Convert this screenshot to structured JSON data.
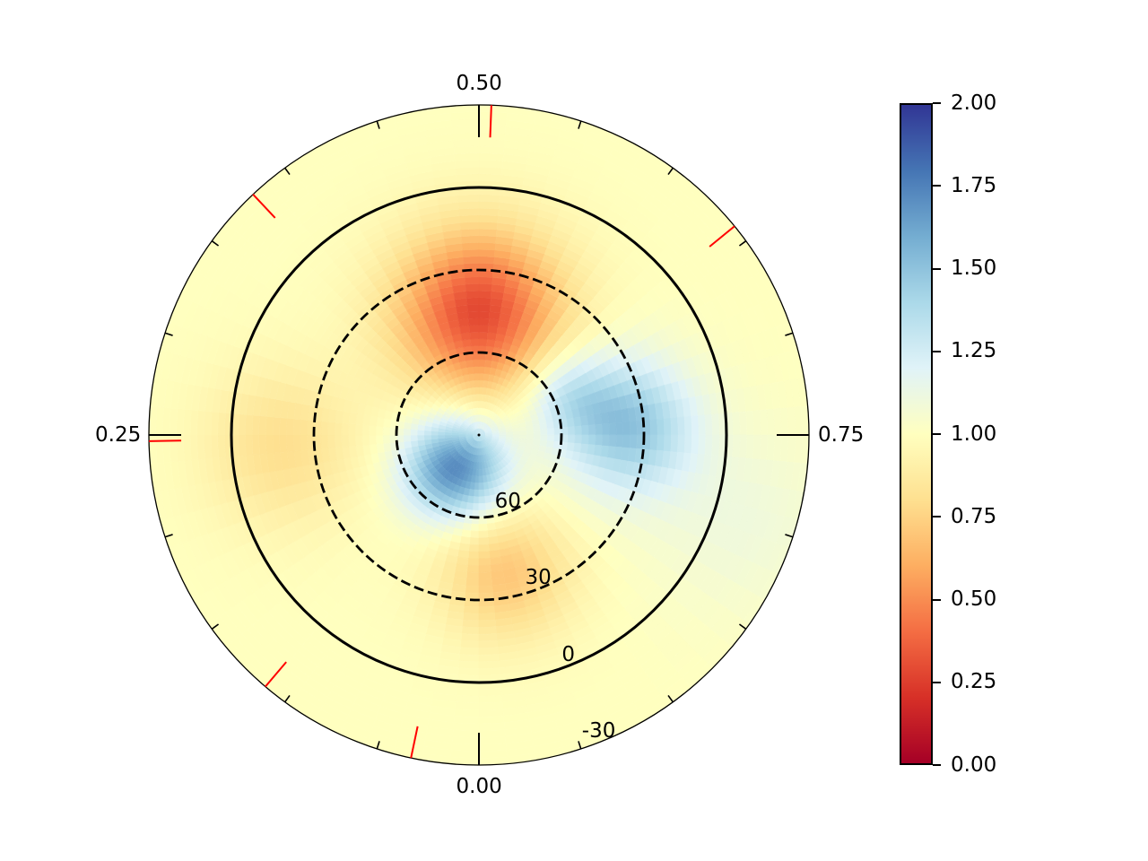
{
  "chart_data": {
    "type": "heatmap",
    "projection": "polar (orbital phase vs. latitude)",
    "phase_ticks": [
      {
        "value": 0.0,
        "label": "0.00"
      },
      {
        "value": 0.25,
        "label": "0.25"
      },
      {
        "value": 0.5,
        "label": "0.50"
      },
      {
        "value": 0.75,
        "label": "0.75"
      }
    ],
    "minor_phase_tick_step": 0.05,
    "latitude_range": [
      -30,
      90
    ],
    "latitude_circles": [
      {
        "value": 60,
        "label": "60",
        "style": "dashed"
      },
      {
        "value": 30,
        "label": "30",
        "style": "dashed"
      },
      {
        "value": 0,
        "label": "0",
        "style": "solid"
      },
      {
        "value": -30,
        "label": "-30",
        "style": "none"
      }
    ],
    "latitude_label_phase": 0.94,
    "red_phase_markers": [
      0.033,
      0.112,
      0.247,
      0.38,
      0.506,
      0.641
    ],
    "colormap": "RdYlBu",
    "colormap_stops": [
      "#a50026",
      "#d73027",
      "#f46d43",
      "#fdae61",
      "#fee090",
      "#ffffbf",
      "#e0f3f8",
      "#abd9e9",
      "#74add1",
      "#4575b4",
      "#313695"
    ],
    "clim": [
      0,
      2
    ],
    "colorbar_ticks": [
      "0.00",
      "0.25",
      "0.50",
      "0.75",
      "1.00",
      "1.25",
      "1.50",
      "1.75",
      "2.00"
    ],
    "field_base_value": 1.0,
    "field_components": [
      {
        "phase": 0.5,
        "lat": 45,
        "amplitude": -0.72,
        "sigma_deg": 21
      },
      {
        "phase": 0.1,
        "lat": 75,
        "amplitude": 0.75,
        "sigma_deg": 13
      },
      {
        "phase": 0.74,
        "lat": 36,
        "amplitude": 0.5,
        "sigma_deg": 17
      },
      {
        "phase": 0.68,
        "lat": 55,
        "amplitude": 0.25,
        "sigma_deg": 11
      },
      {
        "phase": 0.97,
        "lat": 38,
        "amplitude": -0.3,
        "sigma_deg": 17
      },
      {
        "phase": 0.24,
        "lat": 18,
        "amplitude": -0.2,
        "sigma_deg": 20
      },
      {
        "phase": 0.8,
        "lat": -10,
        "amplitude": 0.1,
        "sigma_deg": 25
      }
    ],
    "grid_bins": {
      "phase": 72,
      "lat": 48
    }
  }
}
